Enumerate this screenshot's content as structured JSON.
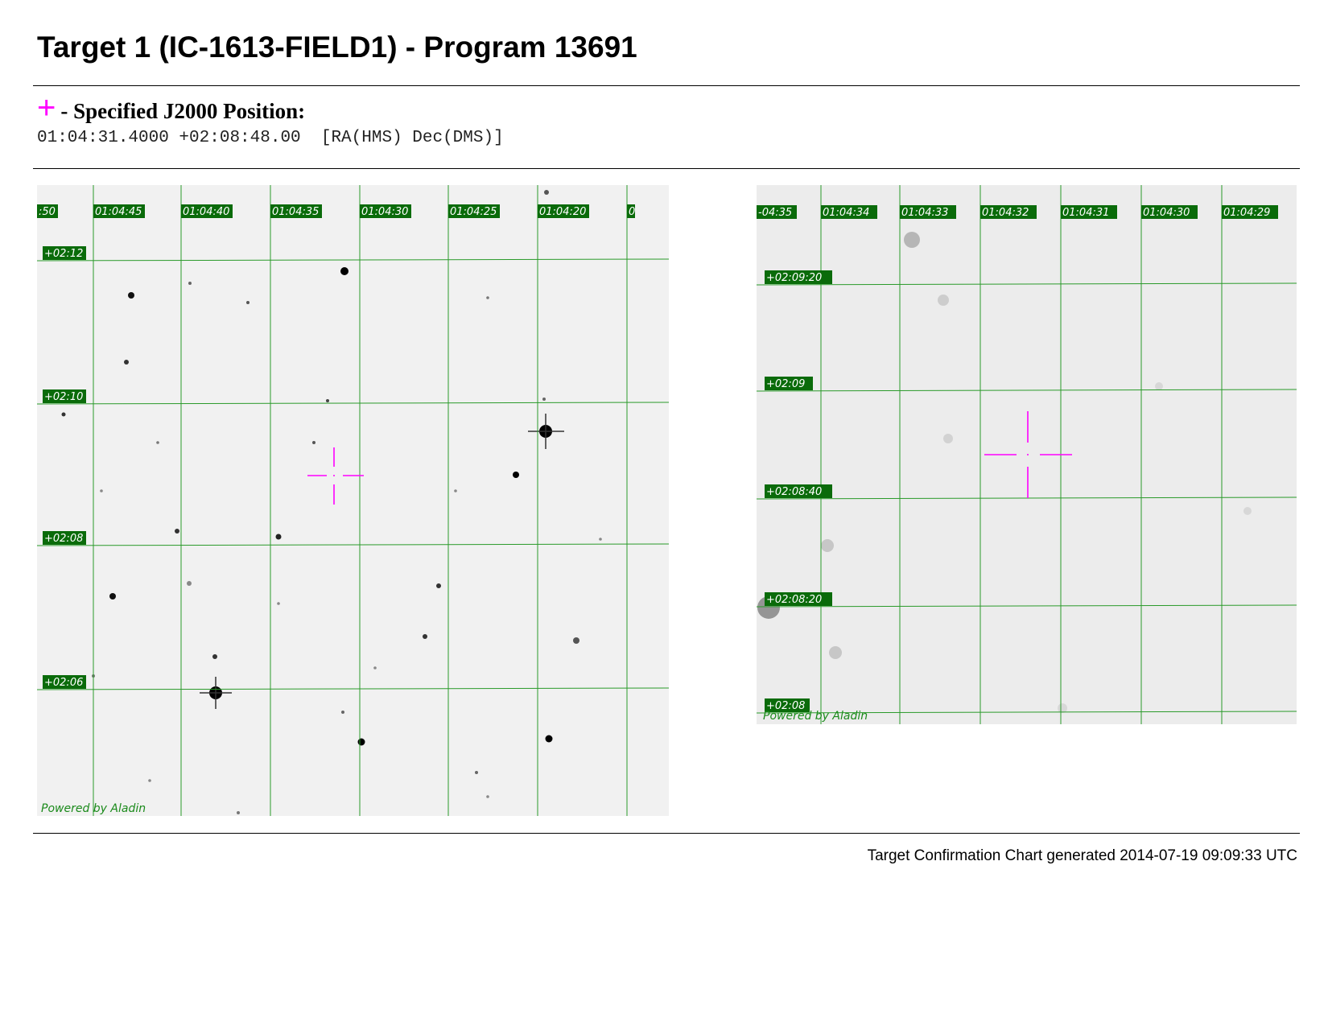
{
  "header": {
    "title": "Target 1 (IC-1613-FIELD1) - Program 13691"
  },
  "position": {
    "marker_glyph": "+",
    "heading": "- Specified J2000 Position:",
    "coords": "01:04:31.4000 +02:08:48.00  [RA(HMS) Dec(DMS)]",
    "marker_color": "#ff00ff"
  },
  "charts": {
    "grid_color": "#2a9a2a",
    "label_bg": "#0a6b0a",
    "left": {
      "ra_labels": [
        ":50",
        "01:04:45",
        "01:04:40",
        "01:04:35",
        "01:04:30",
        "01:04:25",
        "01:04:20",
        "0"
      ],
      "dec_labels": [
        "+02:12",
        "+02:10",
        "+02:08",
        "+02:06"
      ],
      "credit": "Powered by Aladin"
    },
    "right": {
      "ra_labels": [
        "-04:35",
        "01:04:34",
        "01:04:33",
        "01:04:32",
        "01:04:31",
        "01:04:30",
        "01:04:29"
      ],
      "dec_labels": [
        "+02:09:20",
        "+02:09",
        "+02:08:40",
        "+02:08:20",
        "+02:08"
      ],
      "credit": "Powered by Aladin"
    }
  },
  "footer": {
    "generated": "Target Confirmation Chart generated 2014-07-19 09:09:33 UTC"
  }
}
